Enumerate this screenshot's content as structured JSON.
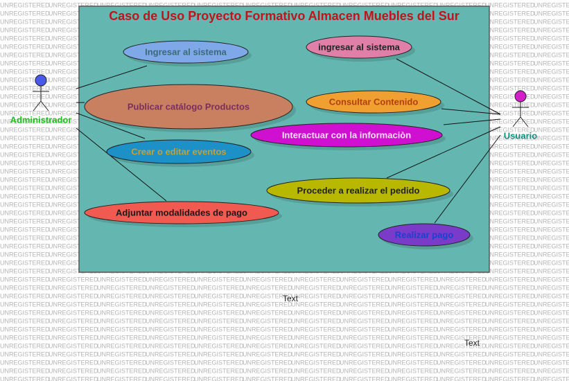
{
  "watermark": "UNREGISTERED",
  "title": "Caso de Uso Proyecto Formativo Almacen Muebles del Sur",
  "actors": [
    {
      "label": "Administrador"
    },
    {
      "label": "Usuario"
    }
  ],
  "use_cases": [
    {
      "label": "Ingresar al sistema"
    },
    {
      "label": "Publicar catálogo Productos"
    },
    {
      "label": "Crear o editar eventos"
    },
    {
      "label": "Adjuntar modalidades de pago"
    },
    {
      "label": "ingresar al sistema"
    },
    {
      "label": "Consultar Contenido"
    },
    {
      "label": "Interactuar con la informaciòn"
    },
    {
      "label": "Proceder a realizar el pedido"
    },
    {
      "label": "Realizar pago"
    }
  ],
  "notes": [
    {
      "label": "Text"
    },
    {
      "label": "Text"
    }
  ]
}
